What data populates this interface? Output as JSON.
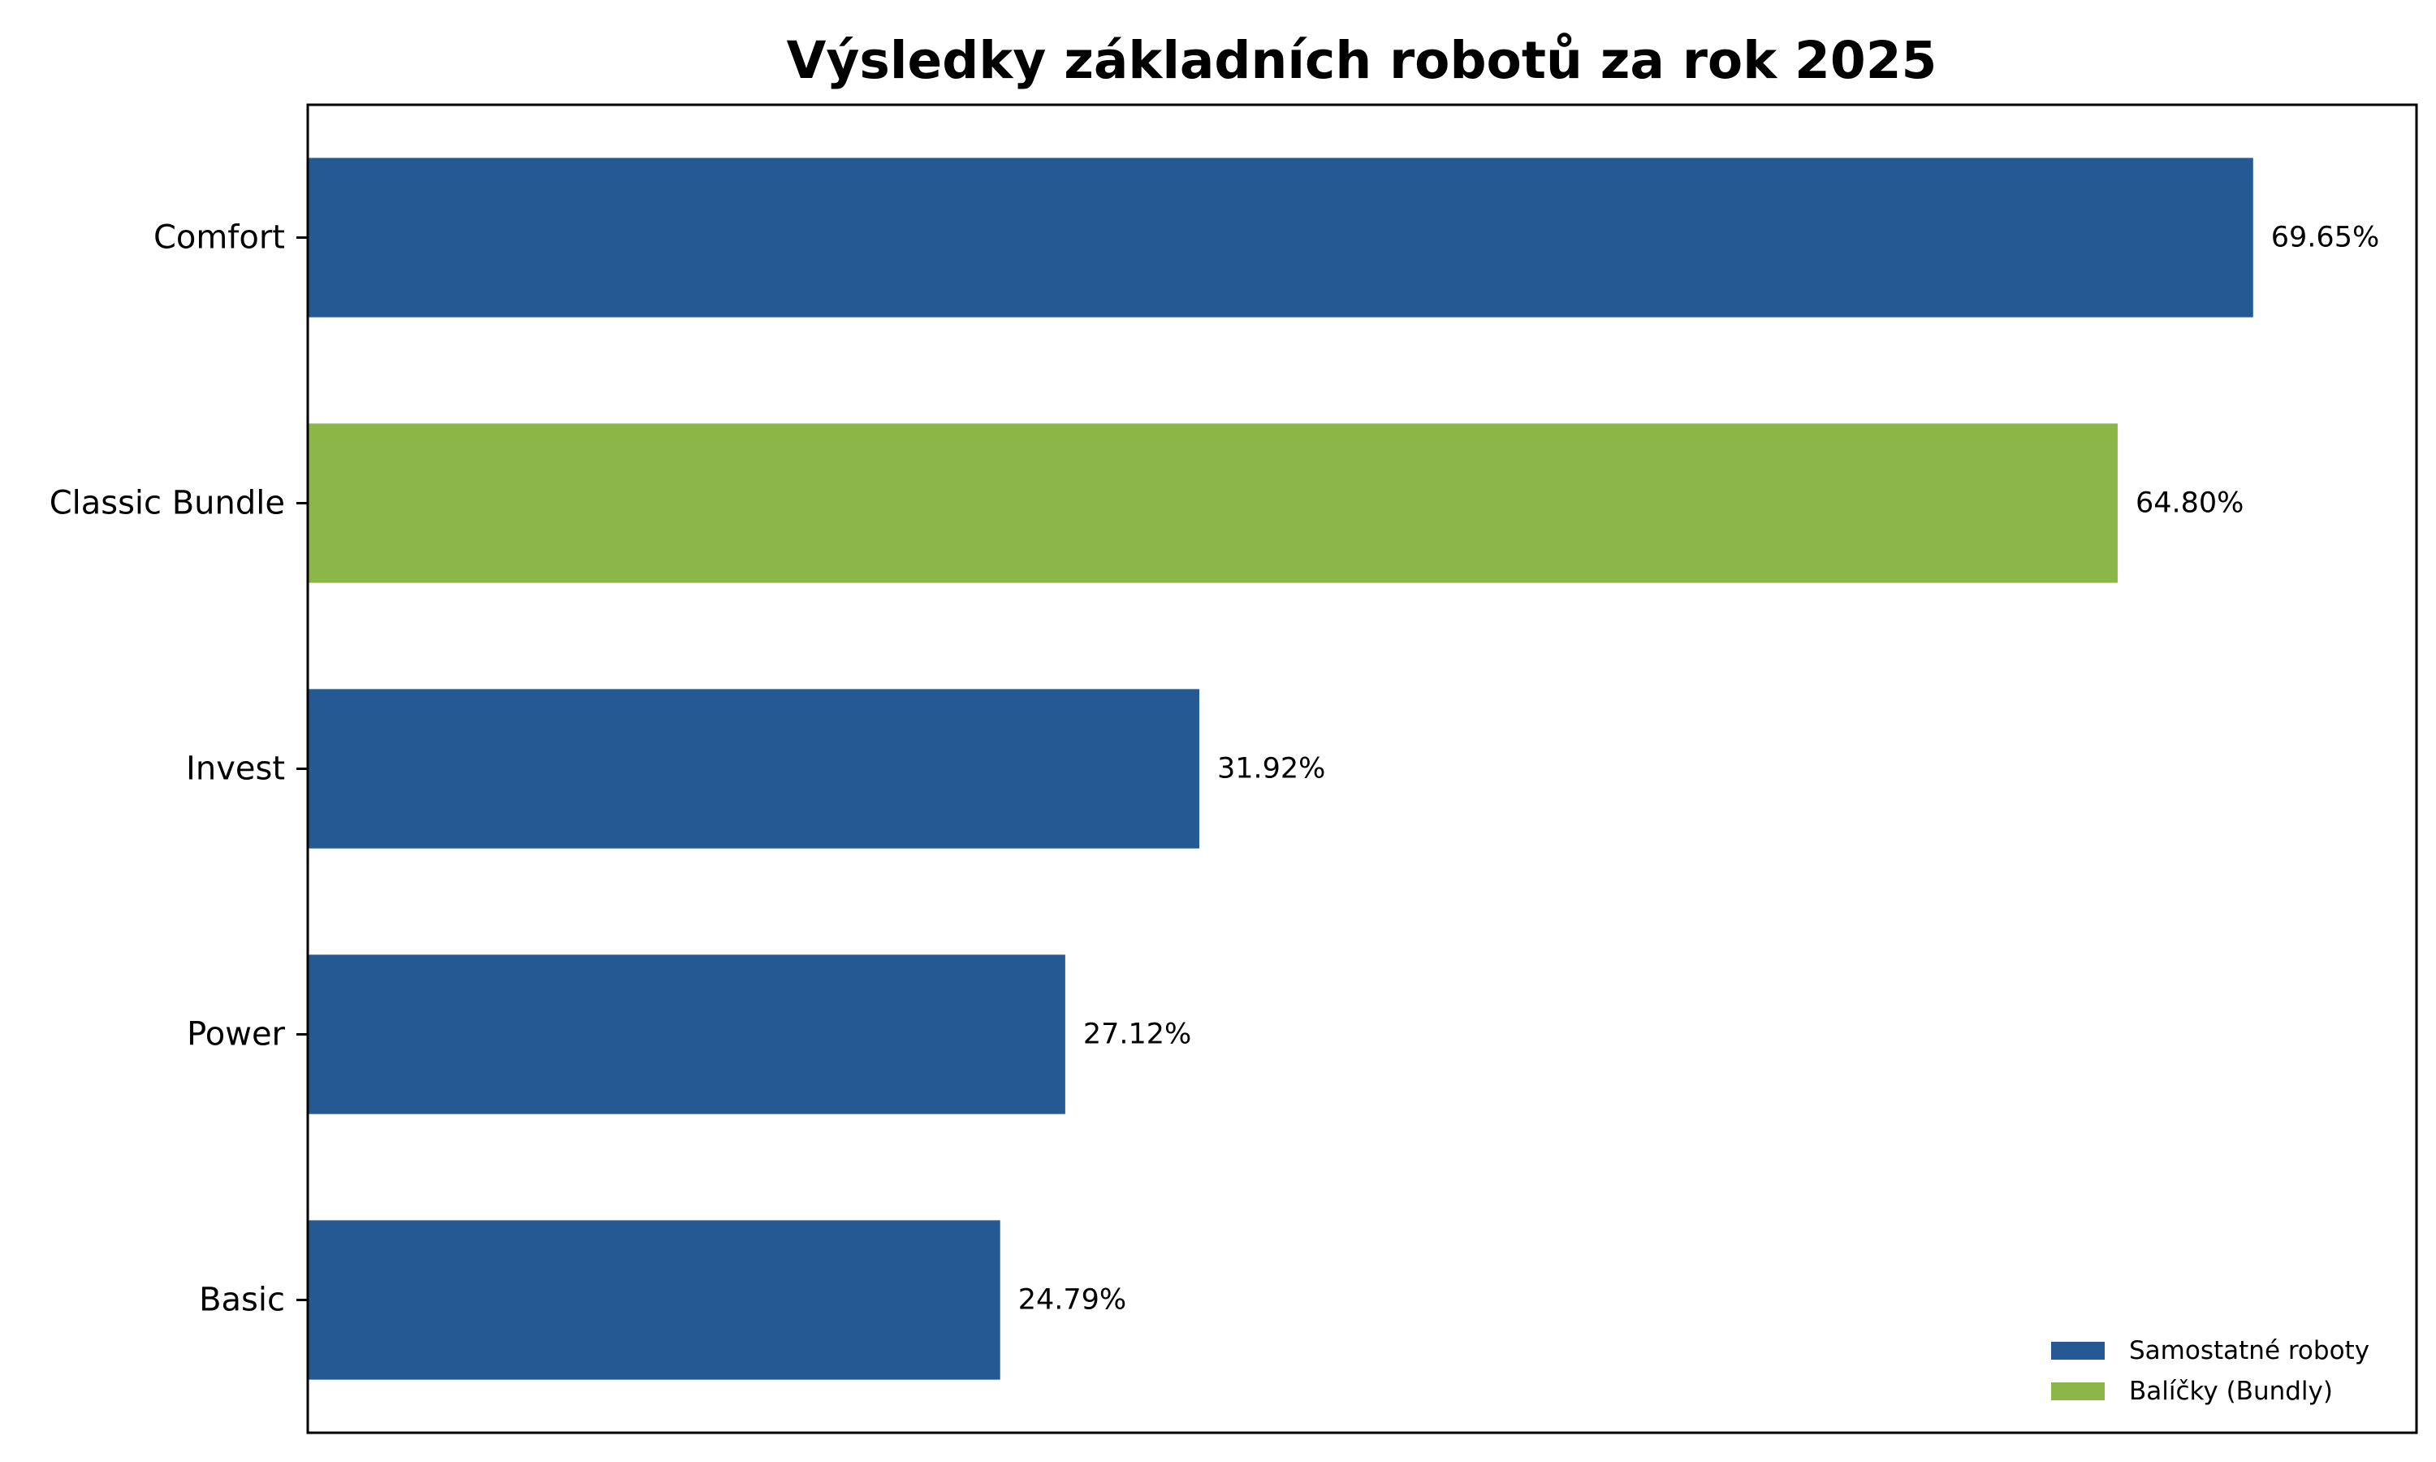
{
  "chart_data": {
    "type": "bar",
    "orientation": "horizontal",
    "title": "Výsledky základních robotů za rok 2025",
    "xlabel": "",
    "ylabel": "",
    "xlim": [
      0,
      75.5
    ],
    "grid": false,
    "x_ticks_visible": false,
    "categories": [
      "Comfort",
      "Classic Bundle",
      "Invest",
      "Power",
      "Basic"
    ],
    "values": [
      69.65,
      64.8,
      31.92,
      27.12,
      24.79
    ],
    "value_labels": [
      "69.65%",
      "64.80%",
      "31.92%",
      "27.12%",
      "24.79%"
    ],
    "groups": [
      "Samostatné roboty",
      "Balíčky (Bundly)",
      "Samostatné roboty",
      "Samostatné roboty",
      "Samostatné roboty"
    ],
    "legend": {
      "placement": "bottom-right",
      "entries": [
        {
          "label": "Samostatné roboty",
          "color": "#245993"
        },
        {
          "label": "Balíčky (Bundly)",
          "color": "#8cb748"
        }
      ]
    }
  }
}
